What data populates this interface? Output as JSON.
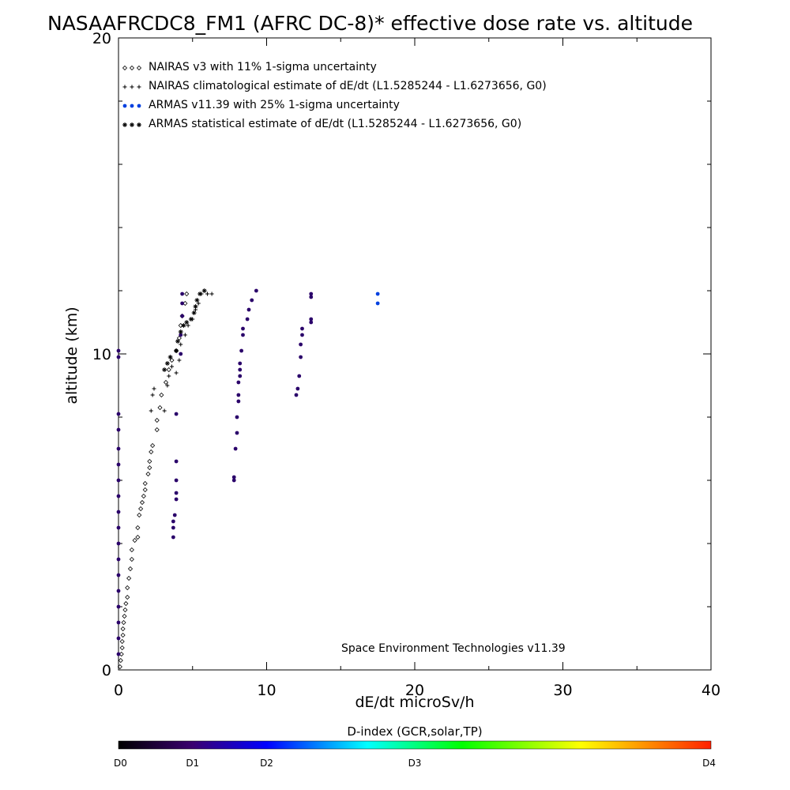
{
  "chart_data": {
    "type": "scatter",
    "title": "NASAAFRCDC8_FM1 (AFRC DC-8)* effective dose rate vs. altitude",
    "xlabel": "dE/dt microSv/h",
    "ylabel": "altitude (km)",
    "xlim": [
      0,
      40
    ],
    "ylim": [
      0,
      20
    ],
    "x_ticks": [
      0,
      10,
      20,
      30,
      40
    ],
    "y_ticks": [
      0,
      10,
      20
    ],
    "grid": false,
    "legend_placement": "top-left",
    "legend": [
      {
        "marker": "◇◇◇",
        "label": "NAIRAS v3 with 11% 1-sigma uncertainty"
      },
      {
        "marker": "+++",
        "label": "NAIRAS climatological estimate of dE/dt (L1.5285244 - L1.6273656, G0)"
      },
      {
        "marker": "●●●",
        "label": "ARMAS v11.39 with 25% 1-sigma uncertainty"
      },
      {
        "marker": "***",
        "label": "ARMAS statistical estimate of dE/dt (L1.5285244 - L1.6273656, G0)"
      }
    ],
    "annotation": "Space Environment Technologies v11.39",
    "colorbar": {
      "title": "D-index (GCR,solar,TP)",
      "labels": [
        "D0",
        "D1",
        "D2",
        "D3",
        "D4"
      ],
      "positions": [
        0,
        0.125,
        0.25,
        0.5,
        1.0
      ],
      "colors": [
        "#000000",
        "#3a0070",
        "#0000ff",
        "#00ffff",
        "#00ff00",
        "#ffff00",
        "#ff2000"
      ]
    },
    "series": [
      {
        "name": "NAIRAS v3",
        "marker": "diamond",
        "color": "#000000",
        "points": [
          [
            0.1,
            0.1
          ],
          [
            0.15,
            0.3
          ],
          [
            0.2,
            0.5
          ],
          [
            0.25,
            0.7
          ],
          [
            0.25,
            0.9
          ],
          [
            0.3,
            1.1
          ],
          [
            0.3,
            1.3
          ],
          [
            0.35,
            1.5
          ],
          [
            0.4,
            1.7
          ],
          [
            0.45,
            1.9
          ],
          [
            0.5,
            2.1
          ],
          [
            0.6,
            2.3
          ],
          [
            0.6,
            2.6
          ],
          [
            0.7,
            2.9
          ],
          [
            0.8,
            3.2
          ],
          [
            0.9,
            3.5
          ],
          [
            0.9,
            3.8
          ],
          [
            1.1,
            4.1
          ],
          [
            1.3,
            4.2
          ],
          [
            1.3,
            4.5
          ],
          [
            1.4,
            4.9
          ],
          [
            1.5,
            5.1
          ],
          [
            1.6,
            5.3
          ],
          [
            1.7,
            5.5
          ],
          [
            1.8,
            5.7
          ],
          [
            1.8,
            5.9
          ],
          [
            2.0,
            6.2
          ],
          [
            2.1,
            6.4
          ],
          [
            2.1,
            6.6
          ],
          [
            2.2,
            6.9
          ],
          [
            2.3,
            7.1
          ],
          [
            2.6,
            7.6
          ],
          [
            2.6,
            7.9
          ],
          [
            2.8,
            8.3
          ],
          [
            2.9,
            8.7
          ],
          [
            3.2,
            9.1
          ],
          [
            3.4,
            9.5
          ],
          [
            3.6,
            9.8
          ],
          [
            3.9,
            10.1
          ],
          [
            4.1,
            10.5
          ],
          [
            4.2,
            10.9
          ],
          [
            4.3,
            11.2
          ],
          [
            4.5,
            11.6
          ],
          [
            4.6,
            11.9
          ]
        ]
      },
      {
        "name": "NAIRAS climatological",
        "marker": "plus",
        "color": "#000000",
        "points": [
          [
            2.2,
            8.2
          ],
          [
            2.3,
            8.7
          ],
          [
            2.4,
            8.9
          ],
          [
            3.1,
            8.2
          ],
          [
            3.3,
            9.0
          ],
          [
            3.4,
            9.3
          ],
          [
            3.6,
            9.6
          ],
          [
            3.9,
            9.4
          ],
          [
            4.1,
            9.8
          ],
          [
            4.2,
            10.3
          ],
          [
            4.5,
            10.6
          ],
          [
            4.7,
            10.9
          ],
          [
            5.0,
            11.1
          ],
          [
            5.2,
            11.4
          ],
          [
            5.4,
            11.6
          ],
          [
            5.6,
            11.9
          ],
          [
            6.0,
            11.9
          ],
          [
            6.3,
            11.9
          ]
        ]
      },
      {
        "name": "ARMAS v11.39",
        "marker": "dot",
        "color": "#2a006a",
        "points": [
          [
            0.0,
            9.9
          ],
          [
            0.0,
            10.1
          ],
          [
            0.0,
            8.1
          ],
          [
            0.0,
            7.6
          ],
          [
            0.0,
            7.0
          ],
          [
            0.0,
            6.5
          ],
          [
            0.0,
            6.0
          ],
          [
            0.0,
            5.5
          ],
          [
            0.0,
            5.0
          ],
          [
            0.0,
            4.5
          ],
          [
            0.0,
            4.0
          ],
          [
            0.0,
            3.5
          ],
          [
            0.0,
            3.0
          ],
          [
            0.0,
            2.5
          ],
          [
            0.0,
            2.0
          ],
          [
            0.0,
            1.5
          ],
          [
            0.0,
            1.0
          ],
          [
            0.0,
            0.5
          ],
          [
            3.7,
            4.2
          ],
          [
            3.7,
            4.5
          ],
          [
            3.7,
            4.7
          ],
          [
            3.8,
            4.9
          ],
          [
            3.9,
            5.4
          ],
          [
            3.9,
            5.6
          ],
          [
            3.9,
            6.0
          ],
          [
            3.9,
            6.6
          ],
          [
            3.9,
            8.1
          ],
          [
            4.2,
            10.0
          ],
          [
            4.2,
            10.6
          ],
          [
            4.3,
            11.2
          ],
          [
            4.3,
            11.6
          ],
          [
            4.3,
            11.9
          ],
          [
            7.8,
            6.0
          ],
          [
            7.8,
            6.1
          ],
          [
            7.9,
            7.0
          ],
          [
            8.0,
            7.5
          ],
          [
            8.0,
            8.0
          ],
          [
            8.1,
            8.5
          ],
          [
            8.1,
            8.7
          ],
          [
            8.1,
            9.1
          ],
          [
            8.2,
            9.3
          ],
          [
            8.2,
            9.5
          ],
          [
            8.2,
            9.7
          ],
          [
            8.3,
            10.1
          ],
          [
            8.4,
            10.6
          ],
          [
            8.4,
            10.8
          ],
          [
            8.7,
            11.1
          ],
          [
            8.8,
            11.4
          ],
          [
            9.0,
            11.7
          ],
          [
            9.3,
            12.0
          ],
          [
            12.0,
            8.7
          ],
          [
            12.1,
            8.9
          ],
          [
            12.2,
            9.3
          ],
          [
            12.3,
            9.9
          ],
          [
            12.3,
            10.3
          ],
          [
            12.4,
            10.6
          ],
          [
            12.4,
            10.8
          ],
          [
            13.0,
            11.0
          ],
          [
            13.0,
            11.1
          ],
          [
            13.0,
            11.8
          ],
          [
            13.0,
            11.9
          ]
        ]
      },
      {
        "name": "ARMAS high",
        "marker": "dot",
        "color": "#0040e0",
        "points": [
          [
            17.5,
            11.6
          ],
          [
            17.5,
            11.9
          ]
        ]
      },
      {
        "name": "ARMAS statistical",
        "marker": "asterisk",
        "color": "#000000",
        "points": [
          [
            3.1,
            9.5
          ],
          [
            3.3,
            9.7
          ],
          [
            3.5,
            9.9
          ],
          [
            3.9,
            10.1
          ],
          [
            4.0,
            10.4
          ],
          [
            4.2,
            10.7
          ],
          [
            4.4,
            10.9
          ],
          [
            4.6,
            11.0
          ],
          [
            4.9,
            11.1
          ],
          [
            5.1,
            11.3
          ],
          [
            5.2,
            11.5
          ],
          [
            5.3,
            11.7
          ],
          [
            5.5,
            11.9
          ],
          [
            5.8,
            12.0
          ]
        ]
      }
    ]
  }
}
